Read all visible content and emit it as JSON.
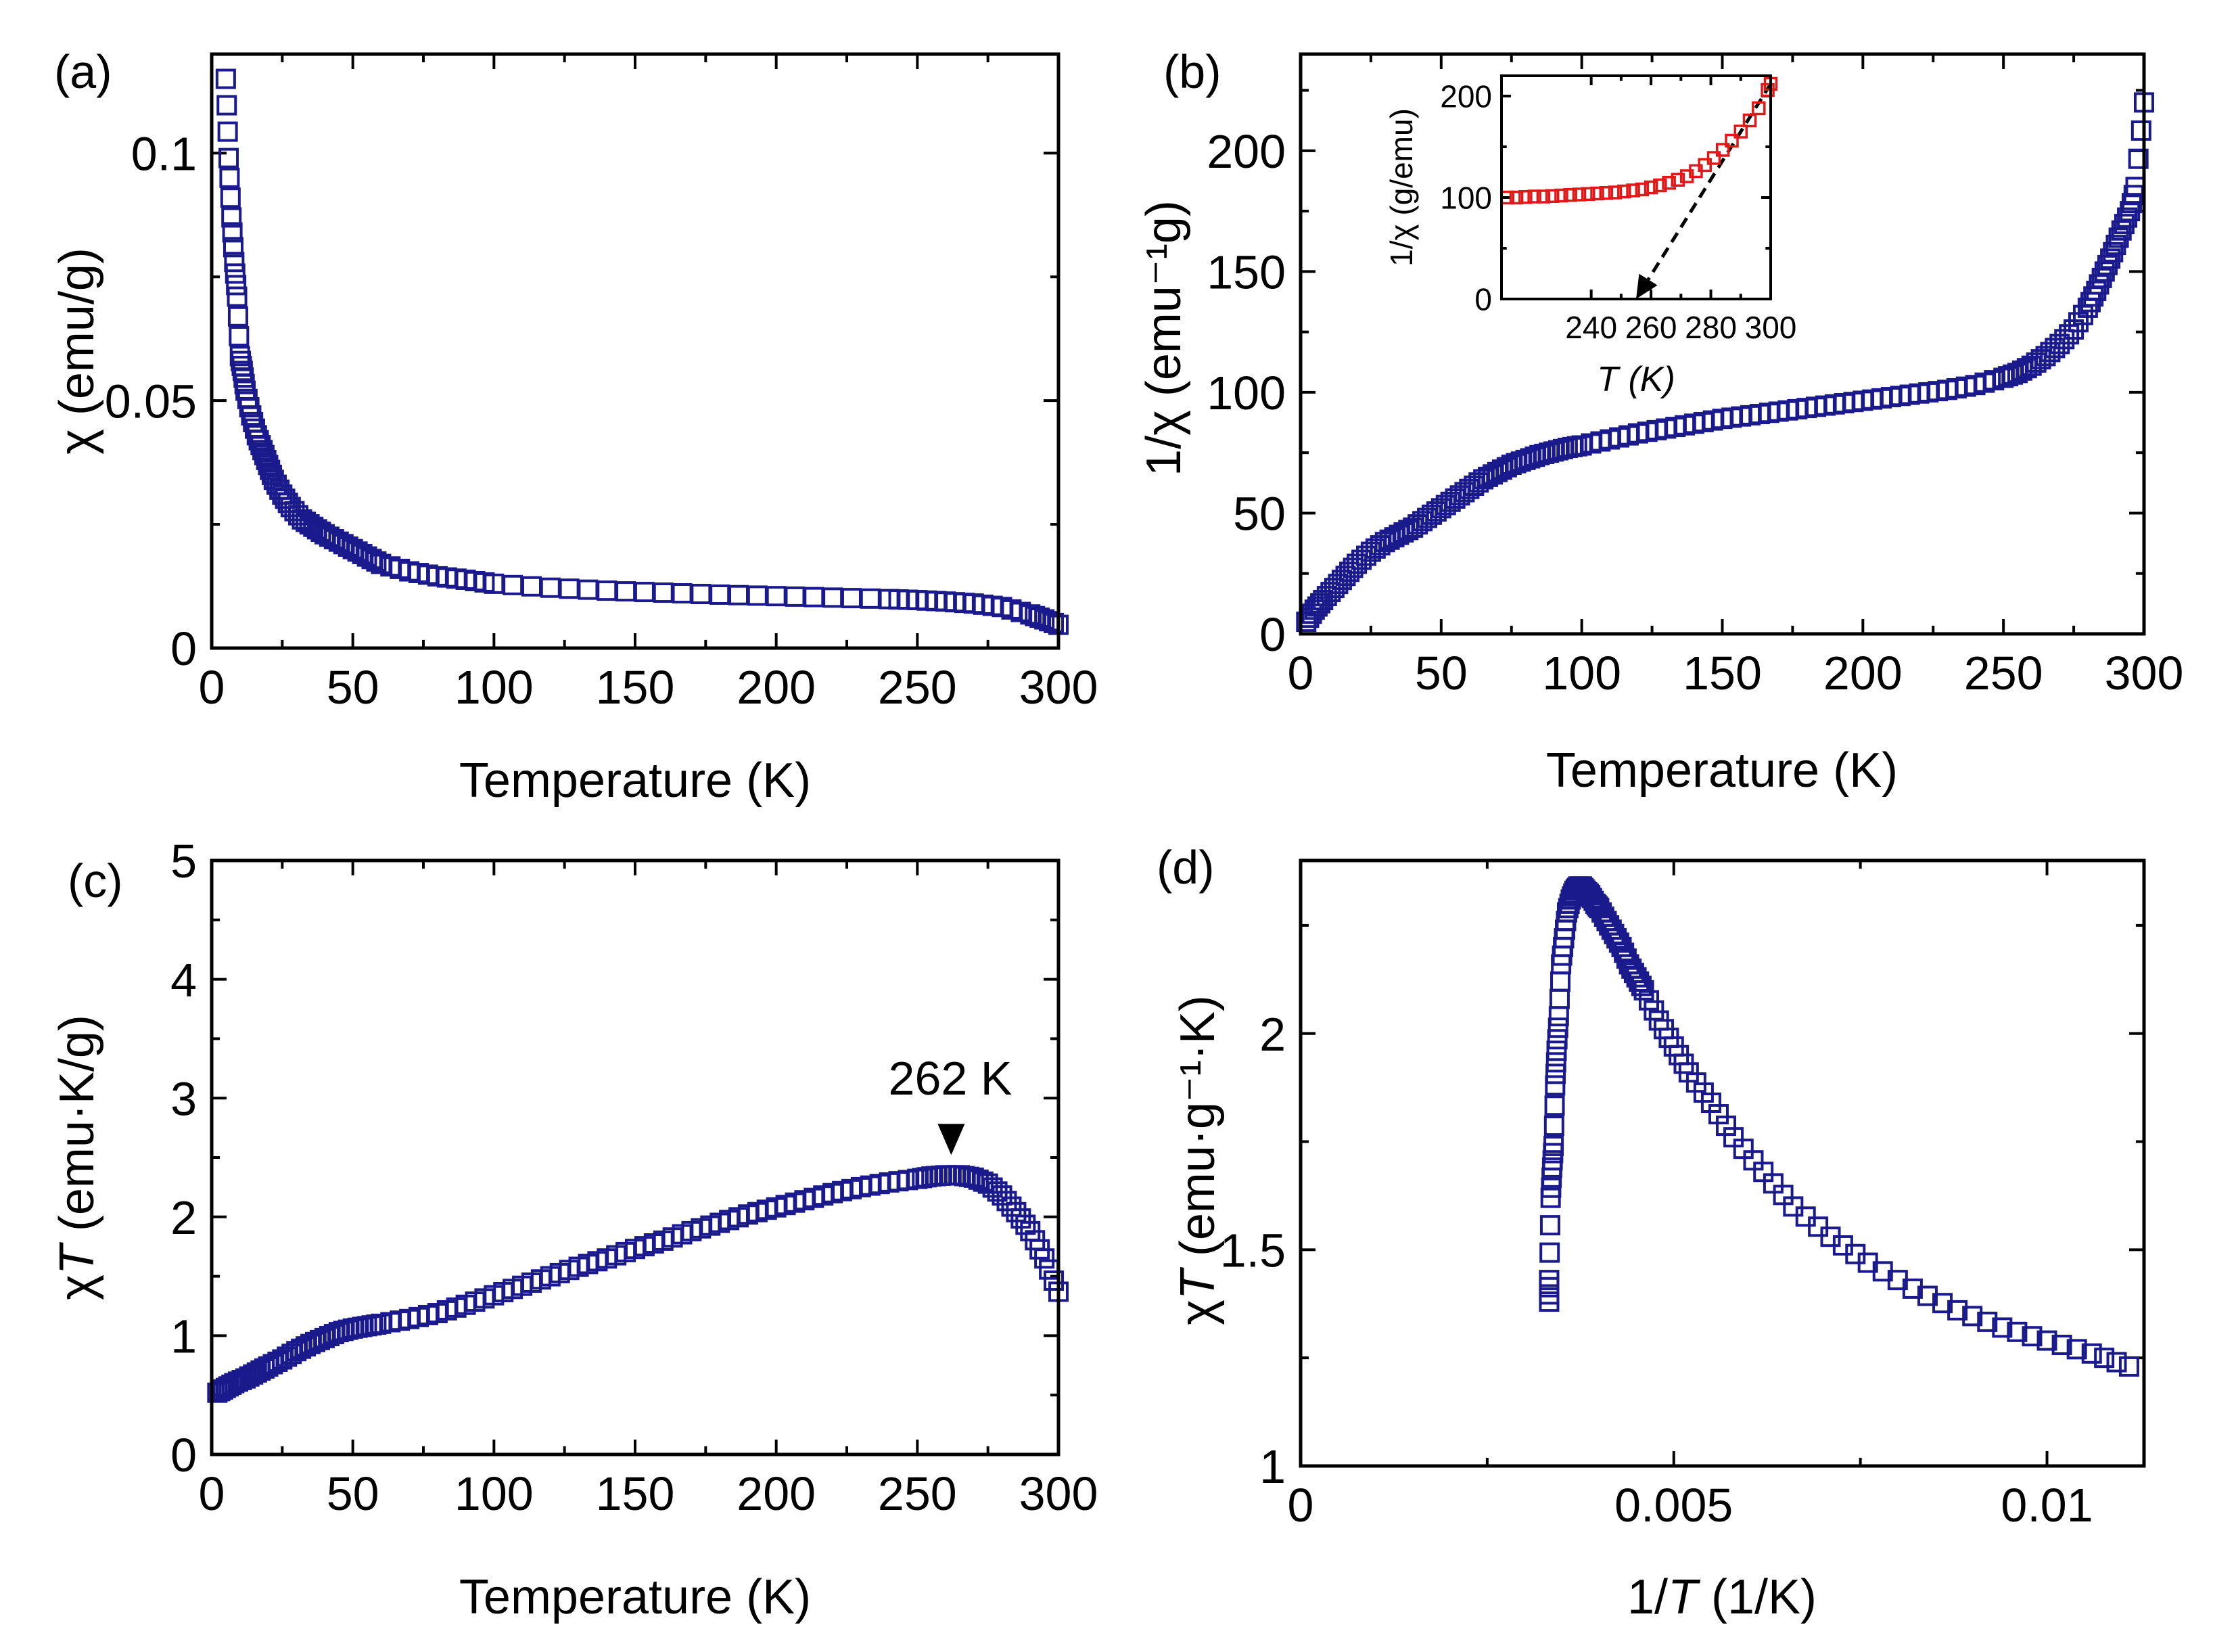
{
  "chart_data": [
    {
      "id": "a",
      "type": "scatter",
      "panel_label": "(a)",
      "xlabel": "Temperature (K)",
      "ylabel": "χ (emu/g)",
      "xlim": [
        0,
        300
      ],
      "ylim": [
        0,
        0.12
      ],
      "xticks": [
        0,
        50,
        100,
        150,
        200,
        250,
        300
      ],
      "xtick_labels": [
        "0",
        "50",
        "100",
        "150",
        "200",
        "250",
        "300"
      ],
      "yticks": [
        0,
        0.05,
        0.1
      ],
      "ytick_labels": [
        "0",
        "0.05",
        "0.1"
      ],
      "marker_color": "#1a1a8c",
      "series": [
        {
          "name": "chi",
          "x": [
            5,
            6,
            7,
            8,
            9,
            10,
            11,
            12,
            14,
            16,
            18,
            20,
            22,
            25,
            28,
            32,
            36,
            40,
            45,
            50,
            55,
            60,
            70,
            80,
            90,
            100,
            120,
            140,
            160,
            180,
            200,
            220,
            240,
            250,
            260,
            270,
            280,
            290,
            295,
            300
          ],
          "y": [
            0.115,
            0.099,
            0.087,
            0.078,
            0.071,
            0.059,
            0.056,
            0.052,
            0.047,
            0.043,
            0.04,
            0.037,
            0.034,
            0.031,
            0.0285,
            0.026,
            0.0245,
            0.023,
            0.0215,
            0.02,
            0.0185,
            0.017,
            0.0155,
            0.0145,
            0.0138,
            0.013,
            0.0122,
            0.0116,
            0.0112,
            0.0108,
            0.0105,
            0.0102,
            0.0099,
            0.0097,
            0.0094,
            0.009,
            0.0083,
            0.0068,
            0.0058,
            0.0047
          ]
        }
      ]
    },
    {
      "id": "b",
      "type": "scatter",
      "panel_label": "(b)",
      "xlabel": "Temperature (K)",
      "ylabel": "1/χ (emu⁻¹g)",
      "xlim": [
        0,
        300
      ],
      "ylim": [
        0,
        240
      ],
      "xticks": [
        0,
        50,
        100,
        150,
        200,
        250,
        300
      ],
      "xtick_labels": [
        "0",
        "50",
        "100",
        "150",
        "200",
        "250",
        "300"
      ],
      "yticks": [
        0,
        50,
        100,
        150,
        200
      ],
      "ytick_labels": [
        "0",
        "50",
        "100",
        "150",
        "200"
      ],
      "marker_color": "#1a1a8c",
      "series": [
        {
          "name": "inverse_chi",
          "x": [
            2,
            5,
            8,
            12,
            16,
            20,
            25,
            30,
            35,
            40,
            45,
            50,
            55,
            60,
            65,
            70,
            75,
            80,
            85,
            90,
            95,
            100,
            110,
            120,
            130,
            140,
            150,
            160,
            170,
            180,
            190,
            200,
            210,
            220,
            230,
            240,
            250,
            255,
            260,
            265,
            270,
            275,
            280,
            283,
            286,
            289,
            292,
            295,
            297,
            300
          ],
          "y": [
            5,
            10,
            14,
            19,
            24,
            29,
            34,
            38,
            41,
            44,
            48,
            52,
            56,
            60,
            64,
            67,
            70,
            72,
            74,
            75.5,
            77,
            78,
            80.5,
            83,
            85,
            87,
            89,
            90.5,
            92,
            93.5,
            95,
            96.5,
            98,
            99.5,
            101,
            103,
            106,
            108,
            111,
            115,
            120,
            126,
            135,
            142,
            150,
            158,
            167,
            175,
            185,
            220
          ]
        }
      ],
      "inset": {
        "xlabel": "T (K)",
        "ylabel": "1/χ (g/emu)",
        "xlim": [
          210,
          300
        ],
        "ylim": [
          0,
          220
        ],
        "xticks": [
          240,
          260,
          280,
          300
        ],
        "xtick_labels": [
          "240",
          "260",
          "280",
          "300"
        ],
        "yticks": [
          0,
          100,
          200
        ],
        "ytick_labels": [
          "0",
          "100",
          "200"
        ],
        "marker_color": "#e01818",
        "x": [
          212,
          215,
          218,
          221,
          224,
          227,
          230,
          233,
          236,
          239,
          242,
          245,
          248,
          251,
          254,
          257,
          260,
          263,
          266,
          269,
          272,
          275,
          278,
          281,
          284,
          287,
          290,
          293,
          296,
          299,
          300
        ],
        "y": [
          100,
          100,
          100.5,
          101,
          101,
          101.5,
          102,
          102.5,
          103,
          103.5,
          104,
          104.5,
          105,
          106,
          107,
          108,
          110,
          112,
          114.5,
          117.5,
          121,
          126,
          132,
          139,
          147,
          156,
          165,
          176,
          188,
          206,
          212
        ],
        "arrow": {
          "from": [
            300,
            212
          ],
          "to": [
            255,
            0
          ]
        }
      }
    },
    {
      "id": "c",
      "type": "scatter",
      "panel_label": "(c)",
      "xlabel": "Temperature (K)",
      "ylabel_prefix": "χ",
      "ylabel_italic": "T",
      "ylabel_suffix": " (emu·K/g)",
      "xlim": [
        0,
        300
      ],
      "ylim": [
        0,
        5
      ],
      "xticks": [
        0,
        50,
        100,
        150,
        200,
        250,
        300
      ],
      "xtick_labels": [
        "0",
        "50",
        "100",
        "150",
        "200",
        "250",
        "300"
      ],
      "yticks": [
        0,
        1,
        2,
        3,
        4,
        5
      ],
      "ytick_labels": [
        "0",
        "1",
        "2",
        "3",
        "4",
        "5"
      ],
      "marker_color": "#1a1a8c",
      "annotation": {
        "text": "262 K",
        "x": 262,
        "y": 2.35
      },
      "series": [
        {
          "name": "chiT",
          "x": [
            2,
            5,
            8,
            12,
            16,
            20,
            25,
            30,
            35,
            40,
            45,
            50,
            55,
            60,
            70,
            80,
            90,
            100,
            110,
            120,
            130,
            140,
            150,
            160,
            170,
            180,
            190,
            200,
            210,
            220,
            230,
            240,
            250,
            255,
            260,
            265,
            270,
            275,
            280,
            285,
            290,
            295,
            300
          ],
          "y": [
            0.52,
            0.56,
            0.6,
            0.64,
            0.69,
            0.74,
            0.8,
            0.87,
            0.93,
            0.98,
            1.03,
            1.06,
            1.08,
            1.1,
            1.14,
            1.19,
            1.26,
            1.34,
            1.42,
            1.5,
            1.58,
            1.65,
            1.73,
            1.8,
            1.88,
            1.95,
            2.02,
            2.08,
            2.14,
            2.2,
            2.25,
            2.29,
            2.32,
            2.34,
            2.35,
            2.35,
            2.33,
            2.28,
            2.18,
            2.04,
            1.88,
            1.65,
            1.37
          ]
        }
      ]
    },
    {
      "id": "d",
      "type": "scatter",
      "panel_label": "(d)",
      "xlabel_prefix": "1/",
      "xlabel_italic": "T",
      "xlabel_suffix": " (1/K)",
      "ylabel_prefix": "χ",
      "ylabel_italic": "T",
      "ylabel_suffix": " (emu·g⁻¹·K)",
      "xlim": [
        0,
        0.0113
      ],
      "ylim": [
        1,
        2.4
      ],
      "xticks": [
        0,
        0.005,
        0.01
      ],
      "xtick_labels": [
        "0",
        "0.005",
        "0.01"
      ],
      "yticks": [
        1,
        1.5,
        2
      ],
      "ytick_labels": [
        "1",
        "1.5",
        "2"
      ],
      "marker_color": "#1a1a8c",
      "series": [
        {
          "name": "chiT_vs_invT",
          "x": [
            0.00333,
            0.00333,
            0.00335,
            0.00337,
            0.00339,
            0.00341,
            0.00343,
            0.00346,
            0.00349,
            0.00353,
            0.00357,
            0.00362,
            0.00367,
            0.00372,
            0.00377,
            0.00382,
            0.00388,
            0.00395,
            0.004,
            0.0041,
            0.0042,
            0.0043,
            0.0044,
            0.0045,
            0.0046,
            0.0048,
            0.005,
            0.0052,
            0.0055,
            0.0058,
            0.0062,
            0.0066,
            0.0071,
            0.0076,
            0.0082,
            0.0088,
            0.0094,
            0.01,
            0.0106,
            0.0111
          ],
          "y": [
            1.38,
            1.43,
            1.62,
            1.69,
            1.74,
            1.88,
            1.96,
            2.04,
            2.16,
            2.22,
            2.28,
            2.31,
            2.33,
            2.34,
            2.34,
            2.33,
            2.32,
            2.3,
            2.29,
            2.26,
            2.23,
            2.2,
            2.16,
            2.13,
            2.1,
            2.03,
            1.97,
            1.91,
            1.84,
            1.76,
            1.68,
            1.6,
            1.53,
            1.47,
            1.41,
            1.36,
            1.32,
            1.29,
            1.26,
            1.23
          ]
        }
      ]
    }
  ]
}
